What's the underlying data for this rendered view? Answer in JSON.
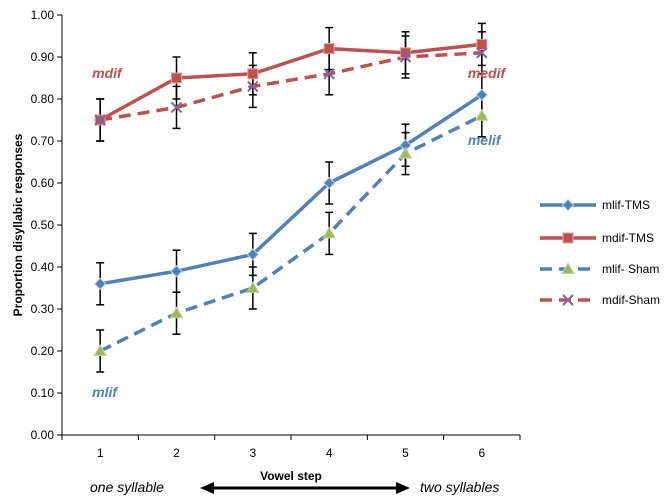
{
  "chart_data": {
    "type": "line",
    "ylabel": "Proportion disyllabic responses",
    "xlabel": "Vowel step",
    "x": [
      1,
      2,
      3,
      4,
      5,
      6
    ],
    "x_tick_labels": [
      "1",
      "2",
      "3",
      "4",
      "5",
      "6"
    ],
    "ylim": [
      0,
      1
    ],
    "y_tick_labels": [
      "0.00",
      "0.10",
      "0.20",
      "0.30",
      "0.40",
      "0.50",
      "0.60",
      "0.70",
      "0.80",
      "0.90",
      "1.00"
    ],
    "grid": false,
    "legend_position": "right",
    "series": [
      {
        "name": "mlif-TMS",
        "color": "#4f81bd",
        "dash": "solid",
        "marker": "diamond",
        "values": [
          0.36,
          0.39,
          0.43,
          0.6,
          0.69,
          0.81
        ],
        "err": [
          0.05,
          0.05,
          0.05,
          0.05,
          0.05,
          0.05
        ]
      },
      {
        "name": "mdif-TMS",
        "color": "#c0504d",
        "dash": "solid",
        "marker": "square",
        "values": [
          0.75,
          0.85,
          0.86,
          0.92,
          0.91,
          0.93
        ],
        "err": [
          0.05,
          0.05,
          0.05,
          0.05,
          0.05,
          0.05
        ]
      },
      {
        "name": "mlif- Sham",
        "color": "#4f81bd",
        "dash": "dashed",
        "marker": "triangle",
        "values": [
          0.2,
          0.29,
          0.35,
          0.48,
          0.67,
          0.76
        ],
        "err": [
          0.05,
          0.05,
          0.05,
          0.05,
          0.05,
          0.05
        ]
      },
      {
        "name": "mdif-Sham",
        "color": "#c0504d",
        "dash": "dashed",
        "marker": "x",
        "values": [
          0.75,
          0.78,
          0.83,
          0.86,
          0.9,
          0.91
        ],
        "err": [
          0.05,
          0.05,
          0.05,
          0.05,
          0.05,
          0.05
        ]
      }
    ],
    "annotations": [
      {
        "text": "mdif",
        "color": "#c0504d",
        "x": 1,
        "y": 0.86
      },
      {
        "text": "medif",
        "color": "#c0504d",
        "x": 6,
        "y": 0.86
      },
      {
        "text": "melif",
        "color": "#4f81bd",
        "x": 6,
        "y": 0.7
      },
      {
        "text": "mlif",
        "color": "#4f81bd",
        "x": 1,
        "y": 0.1
      }
    ],
    "bottom_annotations": {
      "left": "one syllable",
      "right": "two syllables"
    }
  }
}
